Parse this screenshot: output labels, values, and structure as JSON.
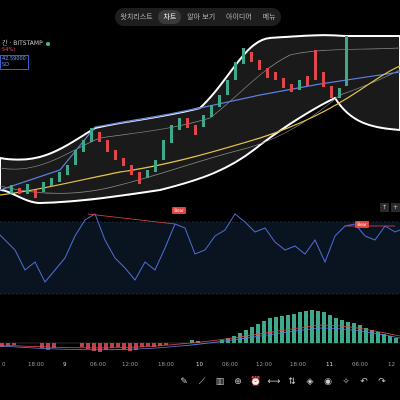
{
  "tabs": [
    {
      "label": "왓치리스트",
      "active": false
    },
    {
      "label": "차트",
      "active": true
    },
    {
      "label": "알아 보기",
      "active": false
    },
    {
      "label": "아이디어",
      "active": false
    },
    {
      "label": "메뉴",
      "active": false
    }
  ],
  "symbol": {
    "text": "간 · BITSTAMP",
    "sub": "54%)",
    "price_line1": "42.59000",
    "price_line2": "SD"
  },
  "rsi_badges": [
    "Bear",
    "Bear"
  ],
  "arrows": [
    "↑",
    "+"
  ],
  "x_ticks": [
    "0",
    "18:00",
    "9",
    "06:00",
    "12:00",
    "18:00",
    "10",
    "06:00",
    "12:00",
    "18:00",
    "11",
    "06:00",
    "12"
  ],
  "colors": {
    "bull": "#3ea88a",
    "bear": "#e0474c",
    "sma": "#5b7fe0",
    "ema": "#e6c347",
    "rsi": "#4d6fd6",
    "bb": "#777"
  },
  "toolbar": [
    "pencil-icon",
    "line-tool-icon",
    "chart-pattern-icon",
    "add-icon",
    "alarm-icon",
    "ruler-icon",
    "arrows-icon",
    "layers-icon",
    "eye-icon",
    "magic-icon",
    "undo-icon",
    "redo-icon"
  ]
}
